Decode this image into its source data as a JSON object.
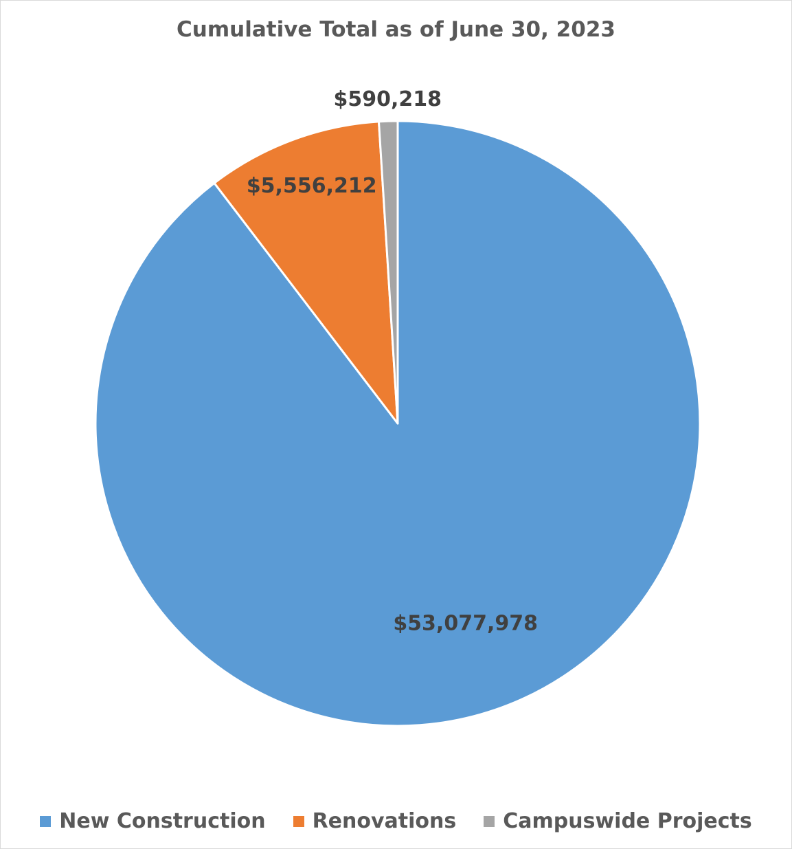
{
  "chart_data": {
    "type": "pie",
    "title": "Cumulative Total as of June 30, 2023",
    "slices": [
      {
        "label": "New Construction",
        "value": 53077978,
        "data_label": "$53,077,978",
        "color": "#5b9bd5"
      },
      {
        "label": "Renovations",
        "value": 5556212,
        "data_label": "$5,556,212",
        "color": "#ed7d31"
      },
      {
        "label": "Campuswide Projects",
        "value": 590218,
        "data_label": "$590,218",
        "color": "#a5a5a5"
      }
    ],
    "legend_position": "bottom"
  }
}
